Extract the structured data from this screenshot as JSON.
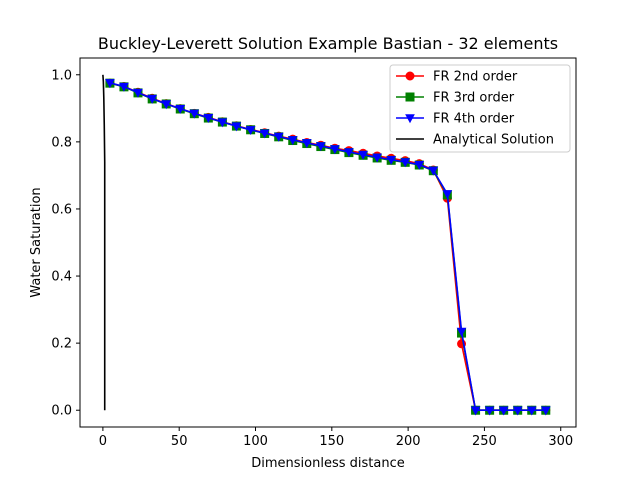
{
  "chart_data": {
    "type": "line",
    "title": "Buckley-Leverett Solution Example Bastian - 32 elements",
    "xlabel": "Dimensionless distance",
    "ylabel": "Water Saturation",
    "xlim": [
      -15,
      310
    ],
    "ylim": [
      -0.05,
      1.05
    ],
    "xticks": [
      0,
      50,
      100,
      150,
      200,
      250,
      300
    ],
    "yticks": [
      0.0,
      0.2,
      0.4,
      0.6,
      0.8,
      1.0
    ],
    "xtick_labels": [
      "0",
      "50",
      "100",
      "150",
      "200",
      "250",
      "300"
    ],
    "ytick_labels": [
      "0.0",
      "0.2",
      "0.4",
      "0.6",
      "0.8",
      "1.0"
    ],
    "grid": false,
    "legend_position": "top-right",
    "x": [
      4.6,
      13.8,
      23.0,
      32.3,
      41.5,
      50.7,
      59.9,
      69.1,
      78.3,
      87.5,
      96.8,
      106.0,
      115.2,
      124.4,
      133.6,
      142.8,
      152.0,
      161.2,
      170.5,
      179.7,
      188.9,
      198.1,
      207.3,
      216.5,
      225.7,
      235.0,
      244.2,
      253.4,
      262.6,
      271.8,
      281.0,
      290.2
    ],
    "series": [
      {
        "name": "FR 2nd order",
        "color": "#ff0000",
        "marker": "circle",
        "values": [
          0.975,
          0.965,
          0.948,
          0.93,
          0.914,
          0.899,
          0.885,
          0.873,
          0.86,
          0.848,
          0.837,
          0.827,
          0.817,
          0.808,
          0.798,
          0.79,
          0.781,
          0.774,
          0.766,
          0.758,
          0.751,
          0.744,
          0.735,
          0.716,
          0.632,
          0.198,
          0.0,
          0.0,
          0.0,
          0.0,
          0.0,
          0.0
        ]
      },
      {
        "name": "FR 3rd order",
        "color": "#008000",
        "marker": "square",
        "values": [
          0.975,
          0.964,
          0.946,
          0.928,
          0.913,
          0.898,
          0.884,
          0.871,
          0.859,
          0.847,
          0.836,
          0.825,
          0.815,
          0.804,
          0.795,
          0.786,
          0.777,
          0.768,
          0.76,
          0.752,
          0.745,
          0.739,
          0.731,
          0.714,
          0.642,
          0.23,
          0.0,
          0.0,
          0.0,
          0.0,
          0.0,
          0.0
        ]
      },
      {
        "name": "FR 4th order",
        "color": "#0000ff",
        "marker": "triangle-down",
        "values": [
          0.976,
          0.965,
          0.947,
          0.929,
          0.913,
          0.899,
          0.885,
          0.872,
          0.859,
          0.847,
          0.836,
          0.826,
          0.816,
          0.806,
          0.797,
          0.788,
          0.779,
          0.77,
          0.762,
          0.754,
          0.747,
          0.74,
          0.732,
          0.715,
          0.645,
          0.235,
          0.0,
          0.0,
          0.0,
          0.0,
          0.0,
          0.0
        ]
      },
      {
        "name": "Analytical Solution",
        "color": "#000000",
        "marker": "none",
        "x": [
          0,
          0.3,
          0.6,
          0.9,
          1.2,
          1.2
        ],
        "values": [
          1.0,
          0.98,
          0.93,
          0.85,
          0.74,
          0.0
        ]
      }
    ]
  }
}
